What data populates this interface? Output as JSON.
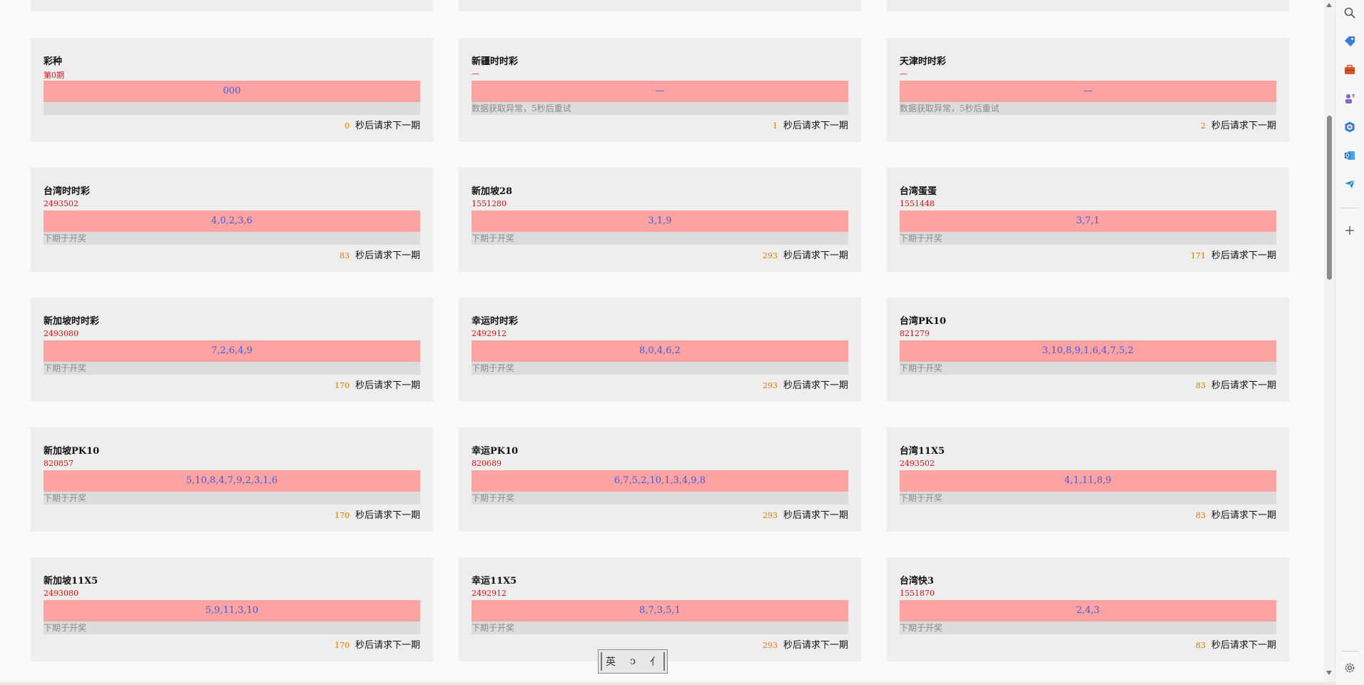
{
  "cards": [
    {
      "title": "彩种",
      "issue": "第0期",
      "result": "000",
      "status": "",
      "countdown": "0",
      "countdown_label": "秒后请求下一期"
    },
    {
      "title": "新疆时时彩",
      "issue": "—",
      "result": "—",
      "status": "数据获取异常，5秒后重试",
      "countdown": "1",
      "countdown_label": "秒后请求下一期"
    },
    {
      "title": "天津时时彩",
      "issue": "—",
      "result": "—",
      "status": "数据获取异常，5秒后重试",
      "countdown": "2",
      "countdown_label": "秒后请求下一期"
    },
    {
      "title": "台湾时时彩",
      "issue": "2493502",
      "result": "4,0,2,3,6",
      "status": "下期于开奖",
      "countdown": "83",
      "countdown_label": "秒后请求下一期"
    },
    {
      "title": "新加坡28",
      "issue": "1551280",
      "result": "3,1,9",
      "status": "下期于开奖",
      "countdown": "293",
      "countdown_label": "秒后请求下一期"
    },
    {
      "title": "台湾蛋蛋",
      "issue": "1551448",
      "result": "3,7,1",
      "status": "下期于开奖",
      "countdown": "171",
      "countdown_label": "秒后请求下一期"
    },
    {
      "title": "新加坡时时彩",
      "issue": "2493080",
      "result": "7,2,6,4,9",
      "status": "下期于开奖",
      "countdown": "170",
      "countdown_label": "秒后请求下一期"
    },
    {
      "title": "幸运时时彩",
      "issue": "2492912",
      "result": "8,0,4,6,2",
      "status": "下期于开奖",
      "countdown": "293",
      "countdown_label": "秒后请求下一期"
    },
    {
      "title": "台湾PK10",
      "issue": "821279",
      "result": "3,10,8,9,1,6,4,7,5,2",
      "status": "下期于开奖",
      "countdown": "83",
      "countdown_label": "秒后请求下一期"
    },
    {
      "title": "新加坡PK10",
      "issue": "820857",
      "result": "5,10,8,4,7,9,2,3,1,6",
      "status": "下期于开奖",
      "countdown": "170",
      "countdown_label": "秒后请求下一期"
    },
    {
      "title": "幸运PK10",
      "issue": "820689",
      "result": "6,7,5,2,10,1,3,4,9,8",
      "status": "下期于开奖",
      "countdown": "293",
      "countdown_label": "秒后请求下一期"
    },
    {
      "title": "台湾11X5",
      "issue": "2493502",
      "result": "4,1,11,8,9",
      "status": "下期于开奖",
      "countdown": "83",
      "countdown_label": "秒后请求下一期"
    },
    {
      "title": "新加坡11X5",
      "issue": "2493080",
      "result": "5,9,11,3,10",
      "status": "下期于开奖",
      "countdown": "170",
      "countdown_label": "秒后请求下一期"
    },
    {
      "title": "幸运11X5",
      "issue": "2492912",
      "result": "8,7,3,5,1",
      "status": "下期于开奖",
      "countdown": "293",
      "countdown_label": "秒后请求下一期"
    },
    {
      "title": "台湾快3",
      "issue": "1551870",
      "result": "2,4,3",
      "status": "下期于开奖",
      "countdown": "83",
      "countdown_label": "秒后请求下一期"
    }
  ],
  "ime_toolbar": {
    "lang": "英",
    "mode": "ↄ",
    "punct": "⺅"
  },
  "sidebar_icons": [
    "search-icon",
    "tag-icon",
    "briefcase-icon",
    "games-icon",
    "office-icon",
    "outlook-icon",
    "send-icon",
    "add-icon",
    "settings-icon"
  ],
  "colors": {
    "result_bg": "#ffa2a2",
    "result_text": "#3a5fe0",
    "issue_text": "#e01010",
    "countdown_num": "#e07a00"
  }
}
